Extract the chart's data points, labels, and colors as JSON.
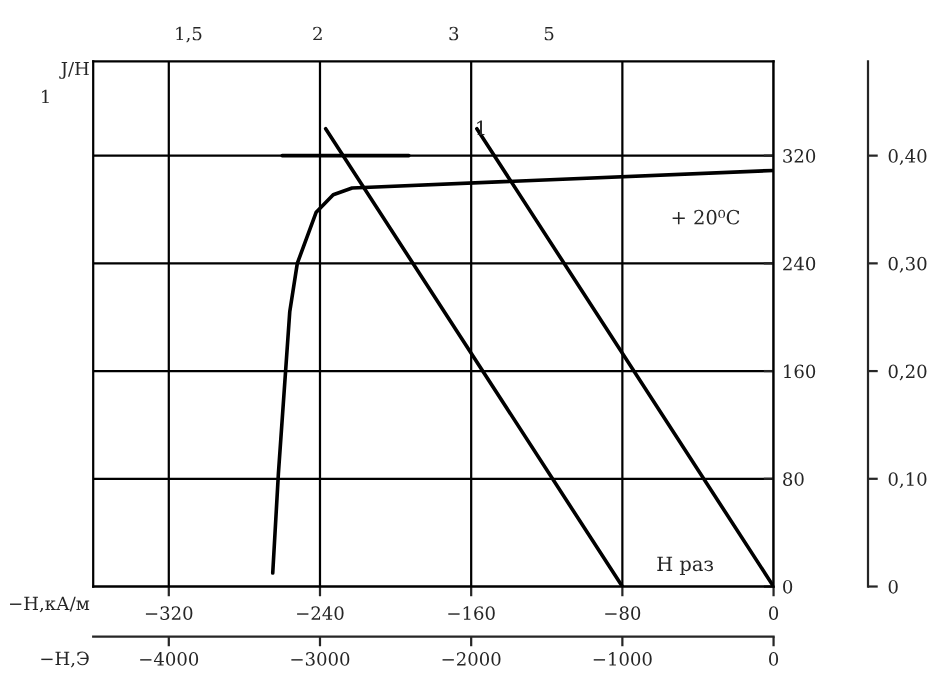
{
  "chart_data": {
    "type": "line",
    "ylabel": "J/Н",
    "xlabel": "−Н,кА/м",
    "x2label": "−Н,Э",
    "xlim": [
      -360,
      0
    ],
    "xticks": [
      {
        "value": -320,
        "label": "−320"
      },
      {
        "value": -240,
        "label": "−240"
      },
      {
        "value": -160,
        "label": "−160"
      },
      {
        "value": -80,
        "label": "−80"
      },
      0
    ],
    "ylim": [
      0,
      390
    ],
    "yticks": [
      0,
      80,
      160,
      240,
      320
    ],
    "x2lim": [
      -4500,
      0
    ],
    "x2ticks": [
      {
        "value": -4000,
        "label": "−4000"
      },
      {
        "value": -3000,
        "label": "−3000"
      },
      {
        "value": -2000,
        "label": "−2000"
      },
      {
        "value": -1000,
        "label": "−1000"
      },
      0
    ],
    "y2lim": [
      0,
      0.4875
    ],
    "y2ticks": [
      0,
      {
        "value": 0.1,
        "label": "0,10"
      },
      {
        "value": 0.2,
        "label": "0,20"
      },
      {
        "value": 0.3,
        "label": "0,30"
      },
      {
        "value": 0.4,
        "label": "0,40"
      }
    ],
    "grid": true,
    "marker": "none",
    "line_style": "solid",
    "series": [
      {
        "color": "#000000",
        "x": [
          -265,
          -262,
          -256,
          -252,
          -242,
          -233,
          -223,
          0
        ],
        "values": [
          10,
          84,
          204,
          240,
          278,
          291,
          296,
          309
        ]
      },
      {
        "color": "#000000",
        "x": [
          -237,
          -80
        ],
        "values": [
          340,
          0
        ]
      },
      {
        "color": "#000000",
        "x": [
          -157,
          0
        ],
        "values": [
          340,
          0
        ]
      },
      {
        "color": "#000000",
        "x": [
          -260,
          -193
        ],
        "values": [
          320,
          320
        ]
      }
    ],
    "annotations": [
      "+ 20⁰C",
      "1",
      "Н раз",
      "1",
      "1,5",
      "2",
      "3",
      "5"
    ]
  }
}
